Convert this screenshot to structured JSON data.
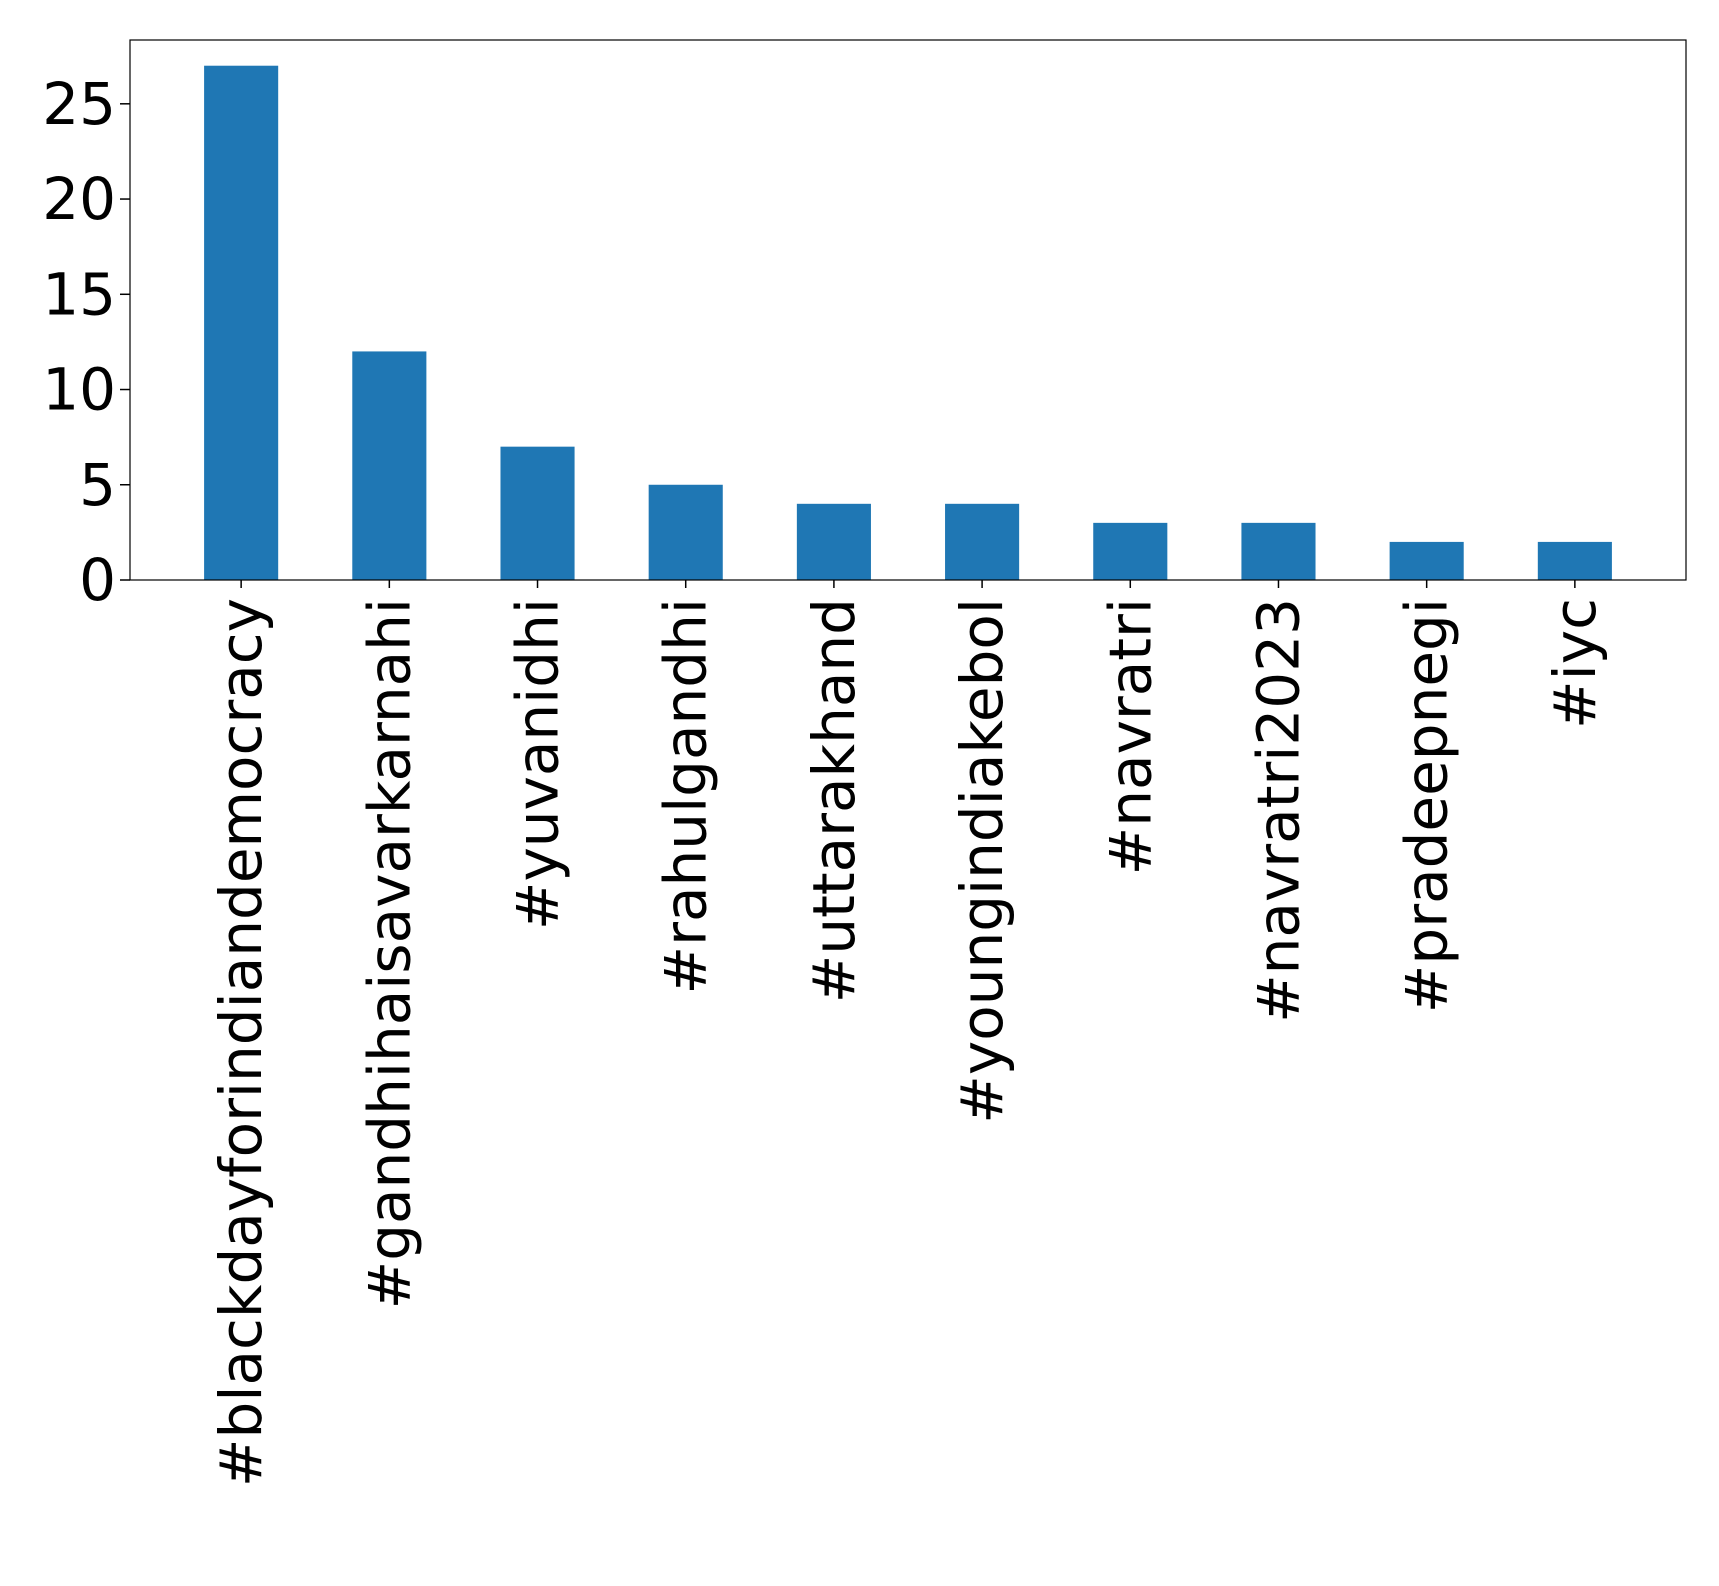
{
  "chart_data": {
    "type": "bar",
    "title": "",
    "xlabel": "",
    "ylabel": "",
    "categories": [
      "#blackdayforindiandemocracy",
      "#gandhihaisavarkarnahi",
      "#yuvanidhi",
      "#rahulgandhi",
      "#uttarakhand",
      "#youngindiakebol",
      "#navratri",
      "#navratri2023",
      "#pradeepnegi",
      "#iyc"
    ],
    "values": [
      27,
      12,
      7,
      5,
      4,
      4,
      3,
      3,
      2,
      2
    ],
    "ylim": [
      0,
      28.35
    ],
    "yticks": [
      0,
      5,
      10,
      15,
      20,
      25
    ],
    "ytick_labels": [
      "0",
      "5",
      "10",
      "15",
      "20",
      "25"
    ],
    "bar_color": "#1f77b4",
    "grid": false,
    "legend": "none"
  }
}
